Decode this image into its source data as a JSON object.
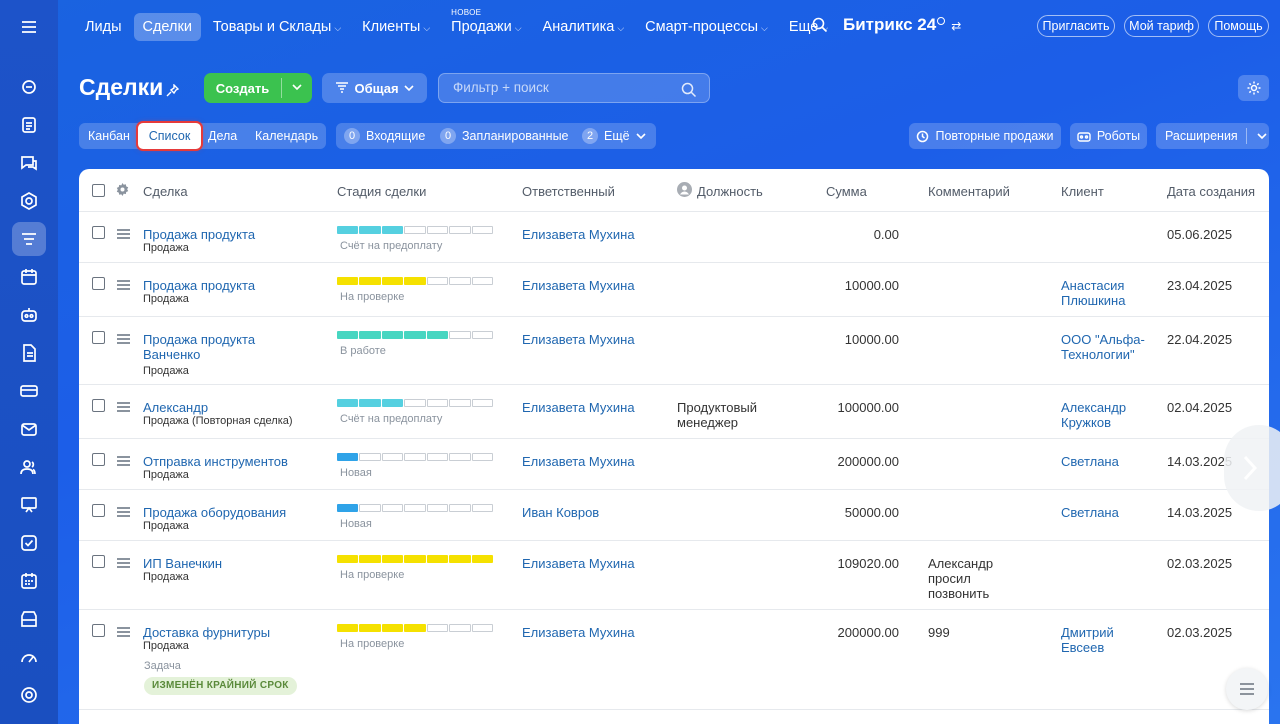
{
  "nav": {
    "items": [
      {
        "label": "Лиды",
        "active": false,
        "chevron": false
      },
      {
        "label": "Сделки",
        "active": true,
        "chevron": false
      },
      {
        "label": "Товары и Склады",
        "active": false,
        "chevron": true
      },
      {
        "label": "Клиенты",
        "active": false,
        "chevron": true
      },
      {
        "label": "Продажи",
        "active": false,
        "chevron": true,
        "sup": "НОВОЕ"
      },
      {
        "label": "Аналитика",
        "active": false,
        "chevron": true
      },
      {
        "label": "Смарт-процессы",
        "active": false,
        "chevron": true
      },
      {
        "label": "Еще",
        "active": false,
        "chevron": true
      }
    ],
    "brand": "Битрикс 24",
    "invite": "Пригласить",
    "tariff": "Мой тариф",
    "help": "Помощь"
  },
  "page": {
    "title": "Сделки",
    "create_label": "Создать",
    "general_label": "Общая",
    "filter_placeholder": "Фильтр + поиск"
  },
  "views": [
    "Канбан",
    "Список",
    "Дела",
    "Календарь"
  ],
  "counters": {
    "incoming_count": "0",
    "incoming_label": "Входящие",
    "planned_count": "0",
    "planned_label": "Запланированные",
    "more_count": "2",
    "more_label": "Ещё"
  },
  "actions": {
    "repeat": "Повторные продажи",
    "robots": "Роботы",
    "ext": "Расширения"
  },
  "table": {
    "headers": {
      "deal": "Сделка",
      "stage": "Стадия сделки",
      "resp": "Ответственный",
      "position": "Должность",
      "sum": "Сумма",
      "comment": "Комментарий",
      "client": "Клиент",
      "created": "Дата создания"
    },
    "rows": [
      {
        "name": "Продажа продукта",
        "type": "Продажа",
        "stage": "Счёт на предоплату",
        "stage_color": "#55d0e0",
        "stage_filled": 3,
        "resp": "Елизавета Мухина",
        "position": "",
        "sum": "0.00",
        "comment": "",
        "client": "",
        "date": "05.06.2025"
      },
      {
        "name": "Продажа продукта",
        "type": "Продажа",
        "stage": "На проверке",
        "stage_color": "#f5e100",
        "stage_filled": 4,
        "resp": "Елизавета Мухина",
        "position": "",
        "sum": "10000.00",
        "comment": "",
        "client": "Анастасия Плюшкина",
        "date": "23.04.2025"
      },
      {
        "name": "Продажа продукта Ванченко",
        "type": "Продажа",
        "stage": "В работе",
        "stage_color": "#47d6c1",
        "stage_filled": 5,
        "resp": "Елизавета Мухина",
        "position": "",
        "sum": "10000.00",
        "comment": "",
        "client": "ООО \"Альфа-Технологии\"",
        "date": "22.04.2025"
      },
      {
        "name": "Александр",
        "type": "Продажа (Повторная сделка)",
        "stage": "Счёт на предоплату",
        "stage_color": "#55d0e0",
        "stage_filled": 3,
        "resp": "Елизавета Мухина",
        "position": "Продуктовый менеджер",
        "sum": "100000.00",
        "comment": "",
        "client": "Александр Кружков",
        "date": "02.04.2025"
      },
      {
        "name": "Отправка инструментов",
        "type": "Продажа",
        "stage": "Новая",
        "stage_color": "#2fa3e8",
        "stage_filled": 1,
        "resp": "Елизавета Мухина",
        "position": "",
        "sum": "200000.00",
        "comment": "",
        "client": "Светлана",
        "date": "14.03.2025"
      },
      {
        "name": "Продажа оборудования",
        "type": "Продажа",
        "stage": "Новая",
        "stage_color": "#2fa3e8",
        "stage_filled": 1,
        "resp": "Иван Ковров",
        "position": "",
        "sum": "50000.00",
        "comment": "",
        "client": "Светлана",
        "date": "14.03.2025"
      },
      {
        "name": "ИП Ванечкин",
        "type": "Продажа",
        "stage": "На проверке",
        "stage_color": "#f5e100",
        "stage_filled": 7,
        "resp": "Елизавета Мухина",
        "position": "",
        "sum": "109020.00",
        "comment": "Александр просил позвонить",
        "client": "",
        "date": "02.03.2025"
      },
      {
        "name": "Доставка фурнитуры",
        "type": "Продажа",
        "stage": "На проверке",
        "stage_color": "#f5e100",
        "stage_filled": 4,
        "resp": "Елизавета Мухина",
        "position": "",
        "sum": "200000.00",
        "comment": "999",
        "client": "Дмитрий Евсеев",
        "date": "02.03.2025",
        "task": "Задача",
        "badge": "ИЗМЕНЁН КРАЙНИЙ СРОК"
      }
    ]
  }
}
